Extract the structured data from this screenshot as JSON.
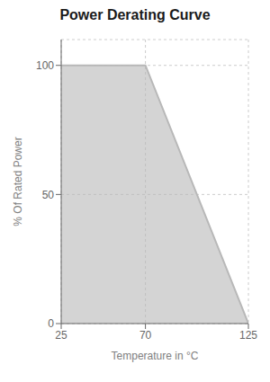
{
  "chart_data": {
    "type": "area",
    "title": "Power Derating Curve",
    "x_label": "Temperature in °C",
    "y_label": "% Of Rated Power",
    "x": [
      25,
      70,
      125
    ],
    "values": [
      100,
      100,
      0
    ],
    "color": "#b8b8b8",
    "xlim": [
      25,
      125
    ],
    "ylim": [
      0,
      110
    ],
    "xticks": [
      25,
      70,
      125
    ],
    "yticks": [
      0,
      50,
      100
    ],
    "grid": true
  }
}
